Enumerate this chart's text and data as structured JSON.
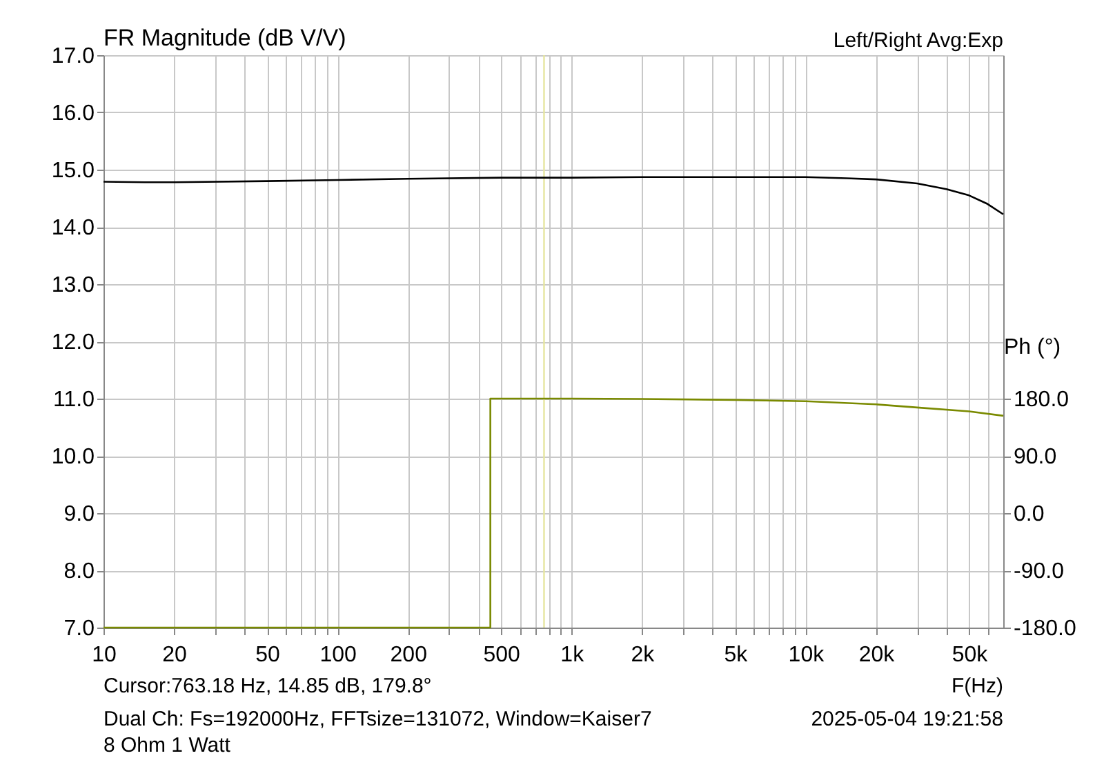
{
  "chart_data": {
    "type": "line",
    "title": "FR Magnitude (dB V/V)",
    "xlabel": "F(Hz)",
    "y2label": "Ph (°)",
    "annotations": [
      "Left/Right  Avg:Exp",
      "Cursor:763.18 Hz, 14.85 dB, 179.8°",
      "Dual Ch: Fs=192000Hz, FFTsize=131072, Window=Kaiser7",
      "2025-05-04  19:21:58",
      "8 Ohm 1 Watt"
    ],
    "series": [
      {
        "color": "#000000",
        "x": [
          10,
          15,
          20,
          50,
          100,
          200,
          500,
          1000,
          2000,
          5000,
          10000,
          15000,
          20000,
          30000,
          40000,
          50000,
          60000,
          70000
        ],
        "values": [
          14.79,
          14.78,
          14.78,
          14.8,
          14.82,
          14.84,
          14.86,
          14.86,
          14.87,
          14.87,
          14.87,
          14.85,
          14.83,
          14.76,
          14.66,
          14.55,
          14.4,
          14.22
        ]
      },
      {
        "color": "#7a8a00",
        "axis": "y2",
        "x": [
          10,
          100,
          450,
          450,
          1000,
          2000,
          5000,
          10000,
          20000,
          30000,
          50000,
          70000
        ],
        "values": [
          -180,
          -180,
          -180,
          180,
          180,
          179.5,
          178,
          176,
          171,
          166,
          160,
          153
        ]
      }
    ],
    "ref_lines": [
      {
        "axis": "x",
        "value": 763.18,
        "color": "#e6e6a0"
      }
    ],
    "xlim": [
      10,
      70000
    ],
    "log": "x",
    "xticks": [
      10,
      20,
      {
        "value": 30,
        "label": null
      },
      {
        "value": 40,
        "label": null
      },
      50,
      {
        "value": 60,
        "label": null
      },
      {
        "value": 70,
        "label": null
      },
      {
        "value": 80,
        "label": null
      },
      {
        "value": 90,
        "label": null
      },
      100,
      200,
      {
        "value": 300,
        "label": null
      },
      {
        "value": 400,
        "label": null
      },
      500,
      {
        "value": 600,
        "label": null
      },
      {
        "value": 700,
        "label": null
      },
      {
        "value": 800,
        "label": null
      },
      {
        "value": 900,
        "label": null
      },
      {
        "value": 1000,
        "label": "1k"
      },
      {
        "value": 2000,
        "label": "2k"
      },
      {
        "value": 3000,
        "label": null
      },
      {
        "value": 4000,
        "label": null
      },
      {
        "value": 5000,
        "label": "5k"
      },
      {
        "value": 6000,
        "label": null
      },
      {
        "value": 7000,
        "label": null
      },
      {
        "value": 8000,
        "label": null
      },
      {
        "value": 9000,
        "label": null
      },
      {
        "value": 10000,
        "label": "10k"
      },
      {
        "value": 20000,
        "label": "20k"
      },
      {
        "value": 30000,
        "label": null
      },
      {
        "value": 40000,
        "label": null
      },
      {
        "value": 50000,
        "label": "50k"
      },
      {
        "value": 60000,
        "label": null
      }
    ],
    "ylim": [
      7,
      17
    ],
    "yticks": [
      {
        "value": 7,
        "label": "7.0"
      },
      {
        "value": 8,
        "label": "8.0"
      },
      {
        "value": 9,
        "label": "9.0"
      },
      {
        "value": 10,
        "label": "10.0"
      },
      {
        "value": 11,
        "label": "11.0"
      },
      {
        "value": 12,
        "label": "12.0"
      },
      {
        "value": 13,
        "label": "13.0"
      },
      {
        "value": 14,
        "label": "14.0"
      },
      {
        "value": 15,
        "label": "15.0"
      },
      {
        "value": 16,
        "label": "16.0"
      },
      {
        "value": 17,
        "label": "17.0"
      }
    ],
    "y2lim": [
      -180,
      720
    ],
    "y2ticks": [
      {
        "value": -180,
        "label": "-180.0"
      },
      {
        "value": -90,
        "label": "-90.0"
      },
      {
        "value": 0,
        "label": "0.0"
      },
      {
        "value": 90,
        "label": "90.0"
      },
      {
        "value": 180,
        "label": "180.0"
      }
    ],
    "grid": true
  }
}
